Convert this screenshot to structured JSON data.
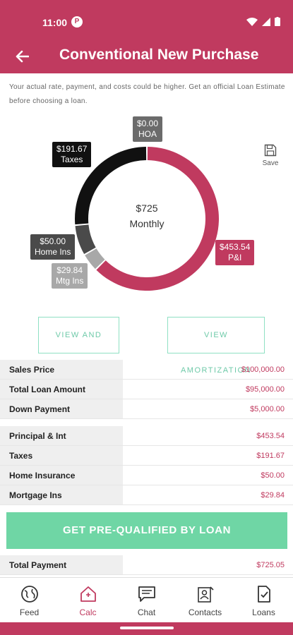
{
  "status_bar": {
    "time": "11:00",
    "notification_glyph": "P"
  },
  "header": {
    "title": "Conventional New Purchase"
  },
  "disclaimer": "Your actual rate, payment, and costs could be higher. Get an official Loan Estimate before choosing a loan.",
  "chart_data": {
    "type": "pie",
    "center_amount": "$725",
    "center_label": "Monthly",
    "slices": [
      {
        "name": "P&I",
        "label": "$453.54",
        "value": 453.54,
        "color": "#c03a5f"
      },
      {
        "name": "Mtg Ins",
        "label": "$29.84",
        "value": 29.84,
        "color": "#a8a8a8"
      },
      {
        "name": "Home Ins",
        "label": "$50.00",
        "value": 50.0,
        "color": "#4a4a4a"
      },
      {
        "name": "Taxes",
        "label": "$191.67",
        "value": 191.67,
        "color": "#111111"
      },
      {
        "name": "HOA",
        "label": "$0.00",
        "value": 0.0,
        "color": "#6b6b6b"
      }
    ]
  },
  "save_label": "Save",
  "buttons": {
    "view_share": "VIEW AND SHARE",
    "view_amortization": "VIEW AMORTIZATION",
    "prequal": "GET PRE-QUALIFIED BY LOAN"
  },
  "loan_table": [
    {
      "label": "Sales Price",
      "value": "$100,000.00"
    },
    {
      "label": "Total Loan Amount",
      "value": "$95,000.00"
    },
    {
      "label": "Down Payment",
      "value": "$5,000.00"
    }
  ],
  "payment_table": [
    {
      "label": "Principal & Int",
      "value": "$453.54"
    },
    {
      "label": "Taxes",
      "value": "$191.67"
    },
    {
      "label": "Home Insurance",
      "value": "$50.00"
    },
    {
      "label": "Mortgage Ins",
      "value": "$29.84"
    }
  ],
  "total": {
    "label": "Total Payment",
    "value": "$725.05"
  },
  "nav": [
    {
      "label": "Feed",
      "icon": "globe-icon"
    },
    {
      "label": "Calc",
      "icon": "calc-house-icon"
    },
    {
      "label": "Chat",
      "icon": "chat-icon"
    },
    {
      "label": "Contacts",
      "icon": "contacts-icon"
    },
    {
      "label": "Loans",
      "icon": "loans-icon"
    }
  ],
  "colors": {
    "brand": "#c03a5f",
    "accent_green": "#6fd6a5",
    "outline_green": "#8fe0c3"
  }
}
